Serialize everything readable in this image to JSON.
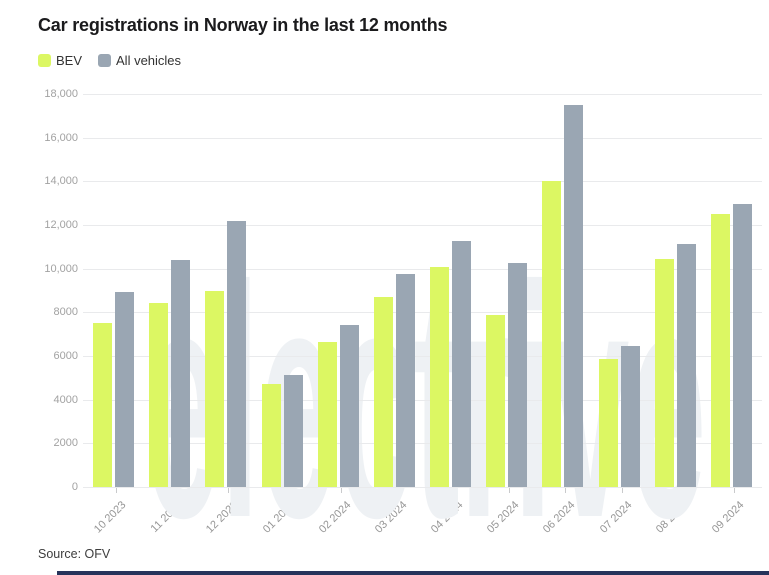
{
  "title": "Car registrations in Norway in the last 12 months",
  "legend": {
    "items": [
      {
        "label": "BEV"
      },
      {
        "label": "All vehicles"
      }
    ]
  },
  "watermark": "electrive",
  "source_text": "Source: OFV",
  "colors": {
    "bev": "#dcf763",
    "all_vehicles": "#9aa6b3",
    "footer_bar": "#26335b",
    "grid": "#e9eaec",
    "axis_label": "#9b9b9b"
  },
  "chart_data": {
    "type": "bar",
    "title": "Car registrations in Norway in the last 12 months",
    "xlabel": "",
    "ylabel": "",
    "categories": [
      "10 2023",
      "11 2023",
      "12 2023",
      "01 2024",
      "02 2024",
      "03 2024",
      "04 2024",
      "05 2024",
      "06 2024",
      "07 2024",
      "08 2024",
      "09 2024"
    ],
    "series": [
      {
        "name": "BEV",
        "color": "#dcf763",
        "values": [
          7500,
          8450,
          9000,
          4700,
          6620,
          8720,
          10060,
          7900,
          14030,
          5880,
          10460,
          12490
        ]
      },
      {
        "name": "All vehicles",
        "color": "#9aa6b3",
        "values": [
          8950,
          10400,
          12200,
          5130,
          7400,
          9750,
          11250,
          10250,
          17510,
          6460,
          11110,
          12980
        ]
      }
    ],
    "ylim": [
      0,
      18000
    ],
    "yticks": [
      {
        "value": 0,
        "label": "0"
      },
      {
        "value": 2000,
        "label": "2000"
      },
      {
        "value": 4000,
        "label": "4000"
      },
      {
        "value": 6000,
        "label": "6000"
      },
      {
        "value": 8000,
        "label": "8000"
      },
      {
        "value": 10000,
        "label": "10,000"
      },
      {
        "value": 12000,
        "label": "12,000"
      },
      {
        "value": 14000,
        "label": "14,000"
      },
      {
        "value": 16000,
        "label": "16,000"
      },
      {
        "value": 18000,
        "label": "18,000"
      }
    ],
    "grid": true,
    "legend_position": "top-left",
    "source": "Source: OFV"
  }
}
